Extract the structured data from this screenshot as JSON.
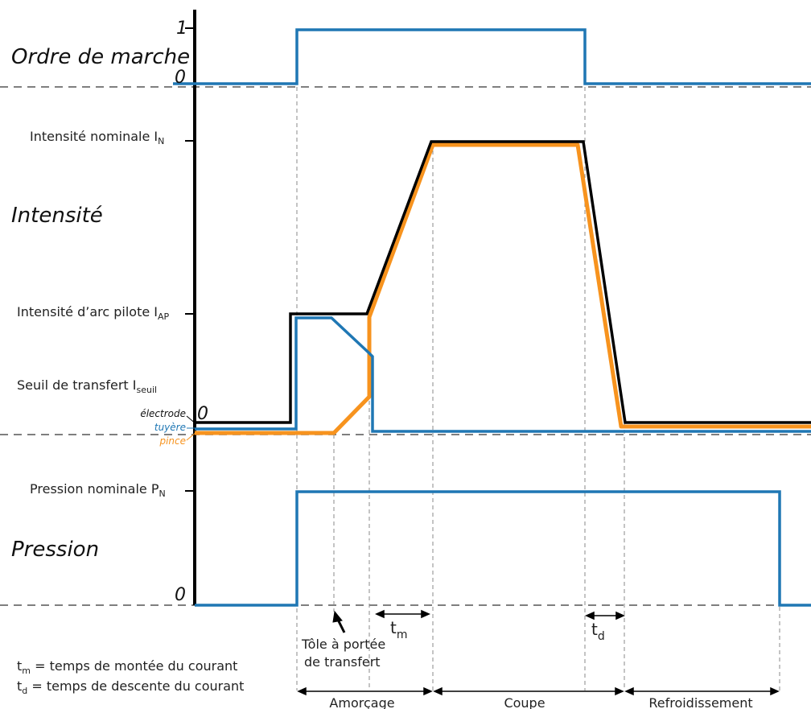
{
  "sections": {
    "ordre": "Ordre de marche",
    "intensite": "Intensité",
    "pression": "Pression"
  },
  "ticks": {
    "one": "1",
    "zero_ordre": "0",
    "zero_intensite": "0",
    "zero_pression": "0"
  },
  "levels": {
    "nominal": {
      "text": "Intensité nominale I",
      "sub": "N"
    },
    "pilot": {
      "text": "Intensité d’arc pilote I",
      "sub": "AP"
    },
    "seuil": {
      "text": "Seuil de transfert I",
      "sub": "seuil"
    },
    "pression_nominale": {
      "text": "Pression nominale P",
      "sub": "N"
    }
  },
  "legend": {
    "electrode": "électrode",
    "tuyere": "tuyère",
    "pince": "pince"
  },
  "annotations": {
    "tm_label": "t",
    "tm_sub": "m",
    "td_label": "t",
    "td_sub": "d",
    "tole_line1": "Tôle à portée",
    "tole_line2": "de transfert",
    "def_tm_sub": "m",
    "def_tm": " = temps de montée du courant",
    "def_td_sub": "d",
    "def_td": " = temps de descente du courant"
  },
  "phases": {
    "amorcage": "Amorçage",
    "coupe": "Coupe",
    "refroidissement": "Refroidissement"
  },
  "colors": {
    "black": "#000000",
    "blue": "#1f77b4",
    "orange": "#f7931e",
    "dash": "#555555",
    "guide": "#888888"
  }
}
